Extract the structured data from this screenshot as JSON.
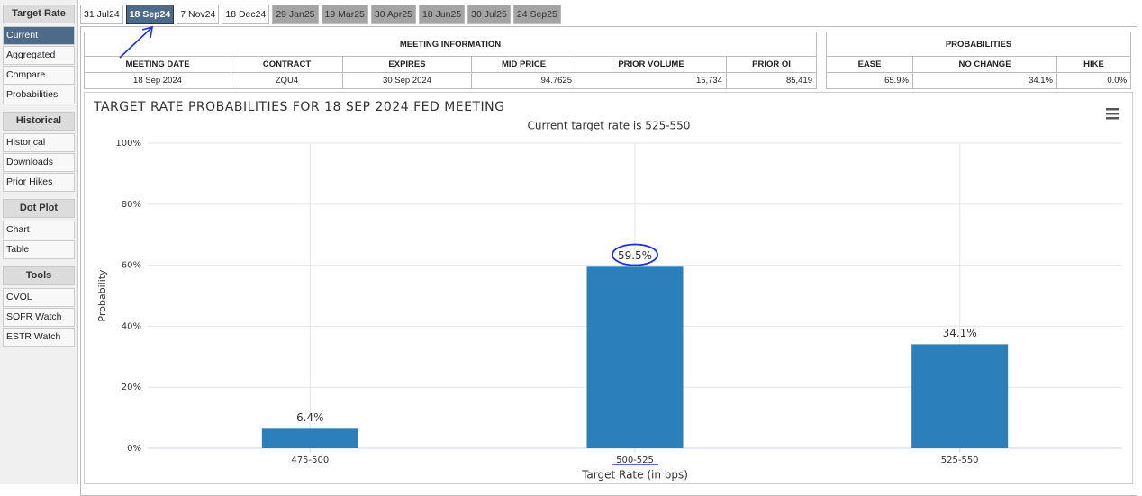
{
  "sidebar": {
    "sections": [
      {
        "title": "Target Rate",
        "items": [
          "Current",
          "Aggregated",
          "Compare",
          "Probabilities"
        ]
      },
      {
        "title": "Historical",
        "items": [
          "Historical",
          "Downloads",
          "Prior Hikes"
        ]
      },
      {
        "title": "Dot Plot",
        "items": [
          "Chart",
          "Table"
        ]
      },
      {
        "title": "Tools",
        "items": [
          "CVOL",
          "SOFR Watch",
          "ESTR Watch"
        ]
      }
    ]
  },
  "tabs": [
    "31 Jul24",
    "18 Sep24",
    "7 Nov24",
    "18 Dec24",
    "29 Jan25",
    "19 Mar25",
    "30 Apr25",
    "18 Jun25",
    "30 Jul25",
    "24 Sep25"
  ],
  "meeting_information": {
    "title": "MEETING INFORMATION",
    "columns": [
      "MEETING DATE",
      "CONTRACT",
      "EXPIRES",
      "MID PRICE",
      "PRIOR VOLUME",
      "PRIOR OI"
    ],
    "rows": [
      [
        "18 Sep 2024",
        "ZQU4",
        "30 Sep 2024",
        "94.7625",
        "15,734",
        "85,419"
      ]
    ]
  },
  "probabilities": {
    "title": "PROBABILITIES",
    "columns": [
      "EASE",
      "NO CHANGE",
      "HIKE"
    ],
    "rows": [
      [
        "65.9%",
        "34.1%",
        "0.0%"
      ]
    ]
  },
  "chart_data": {
    "type": "bar",
    "title": "TARGET RATE PROBABILITIES FOR 18 SEP 2024 FED MEETING",
    "subtitle": "Current target rate is 525-550",
    "x_label": "Target Rate (in bps)",
    "y_label": "Probability",
    "categories": [
      "475-500",
      "500-525",
      "525-550"
    ],
    "values": [
      6.4,
      59.5,
      34.1
    ],
    "value_labels": [
      "6.4%",
      "59.5%",
      "34.1%"
    ],
    "color": "#2b7fba",
    "ylim": [
      0,
      100
    ],
    "yticks": [
      {
        "value": 0,
        "label": "0%"
      },
      {
        "value": 20,
        "label": "20%"
      },
      {
        "value": 40,
        "label": "40%"
      },
      {
        "value": 60,
        "label": "60%"
      },
      {
        "value": 80,
        "label": "80%"
      },
      {
        "value": 100,
        "label": "100%"
      }
    ],
    "grid": true
  }
}
